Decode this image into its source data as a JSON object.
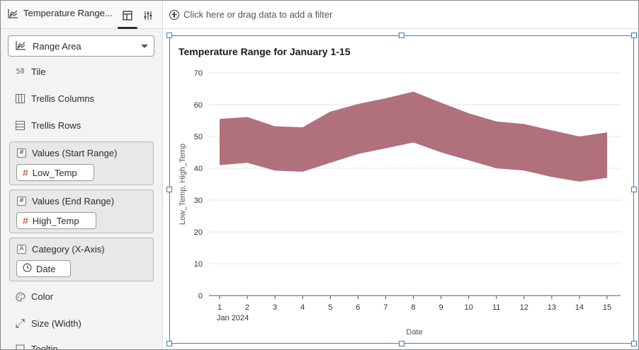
{
  "tab": {
    "title": "Temperature Range..."
  },
  "visualization_type": {
    "selected": "Range Area"
  },
  "grammar": {
    "tile": "Tile",
    "trellis_columns": "Trellis Columns",
    "trellis_rows": "Trellis Rows",
    "values_start": {
      "label": "Values (Start Range)",
      "chip": "Low_Temp"
    },
    "values_end": {
      "label": "Values (End Range)",
      "chip": "High_Temp"
    },
    "category": {
      "label": "Category (X-Axis)",
      "chip": "Date"
    },
    "color": "Color",
    "size": "Size (Width)",
    "tooltip": "Tooltip"
  },
  "filter_bar": {
    "placeholder": "Click here or drag data to add a filter"
  },
  "chart_data": {
    "type": "area",
    "title": "Temperature Range for January 1-15",
    "xlabel": "Date",
    "ylabel": "Low_Temp, High_Temp",
    "x_sublabel": "Jan 2024",
    "categories": [
      "1",
      "2",
      "3",
      "4",
      "5",
      "6",
      "7",
      "8",
      "9",
      "10",
      "11",
      "12",
      "13",
      "14",
      "15"
    ],
    "series": [
      {
        "name": "Low_Temp",
        "values": [
          41,
          41.7,
          39.3,
          38.9,
          41.7,
          44.5,
          46.3,
          48.1,
          45,
          42.5,
          40,
          39.3,
          37.3,
          35.8,
          37
        ]
      },
      {
        "name": "High_Temp",
        "values": [
          55.5,
          56.1,
          53.2,
          52.9,
          57.8,
          60.2,
          62,
          64.1,
          60.6,
          57.3,
          54.7,
          53.9,
          51.9,
          50,
          51.3
        ]
      }
    ],
    "ylim": [
      0,
      70
    ],
    "yticks": [
      0,
      10,
      20,
      30,
      40,
      50,
      60,
      70
    ],
    "grid": true,
    "fill_color": "#b0707c"
  }
}
